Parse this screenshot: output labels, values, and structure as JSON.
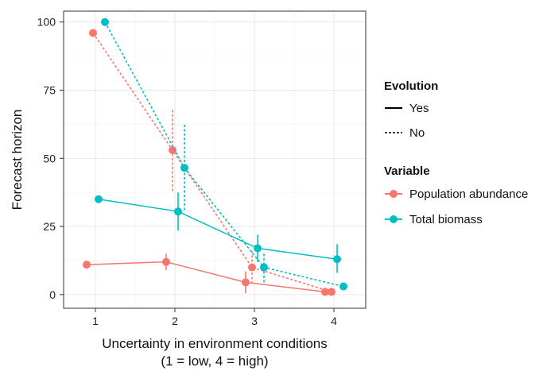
{
  "chart_data": {
    "type": "line",
    "xlabel_line1": "Uncertainty in environment conditions",
    "xlabel_line2": "(1 = low, 4 = high)",
    "ylabel": "Forecast horizon",
    "x_ticks": [
      "1",
      "2",
      "3",
      "4"
    ],
    "y_ticks": [
      "0",
      "25",
      "50",
      "75",
      "100"
    ],
    "xlim": [
      0.6,
      4.4
    ],
    "ylim": [
      -5,
      104
    ],
    "grid": true,
    "legend_placement": "right",
    "legend": {
      "linetype_title": "Evolution",
      "linetype_entries": [
        {
          "label": "Yes",
          "dash": "solid"
        },
        {
          "label": "No",
          "dash": "dashed"
        }
      ],
      "color_title": "Variable",
      "color_entries": [
        {
          "label": "Population abundance",
          "color": "#F8766D"
        },
        {
          "label": "Total biomass",
          "color": "#00BFC4"
        }
      ]
    },
    "series": [
      {
        "variable": "Population abundance",
        "evolution": "Yes",
        "color": "#F8766D",
        "dash": "solid",
        "points": [
          {
            "x": 0.89,
            "y": 11,
            "lo": null,
            "hi": null
          },
          {
            "x": 1.89,
            "y": 12,
            "lo": 9,
            "hi": 15
          },
          {
            "x": 2.89,
            "y": 4.5,
            "lo": 0.5,
            "hi": 8.5
          },
          {
            "x": 3.89,
            "y": 1,
            "lo": null,
            "hi": null
          }
        ]
      },
      {
        "variable": "Population abundance",
        "evolution": "No",
        "color": "#F8766D",
        "dash": "dashed",
        "points": [
          {
            "x": 0.97,
            "y": 96,
            "lo": null,
            "hi": null
          },
          {
            "x": 1.97,
            "y": 53,
            "lo": 38,
            "hi": 68
          },
          {
            "x": 2.97,
            "y": 10,
            "lo": 4,
            "hi": 16
          },
          {
            "x": 3.97,
            "y": 1,
            "lo": null,
            "hi": null
          }
        ]
      },
      {
        "variable": "Total biomass",
        "evolution": "Yes",
        "color": "#00BFC4",
        "dash": "solid",
        "points": [
          {
            "x": 1.04,
            "y": 35,
            "lo": null,
            "hi": null
          },
          {
            "x": 2.04,
            "y": 30.5,
            "lo": 23.5,
            "hi": 37.5
          },
          {
            "x": 3.04,
            "y": 17,
            "lo": 12,
            "hi": 22
          },
          {
            "x": 4.04,
            "y": 13,
            "lo": 8,
            "hi": 18.5
          }
        ]
      },
      {
        "variable": "Total biomass",
        "evolution": "No",
        "color": "#00BFC4",
        "dash": "dashed",
        "points": [
          {
            "x": 1.12,
            "y": 100,
            "lo": null,
            "hi": null
          },
          {
            "x": 2.12,
            "y": 46.5,
            "lo": 31,
            "hi": 62.5
          },
          {
            "x": 3.12,
            "y": 10,
            "lo": 4.5,
            "hi": 15.5
          },
          {
            "x": 4.12,
            "y": 3,
            "lo": null,
            "hi": null
          }
        ]
      }
    ]
  }
}
